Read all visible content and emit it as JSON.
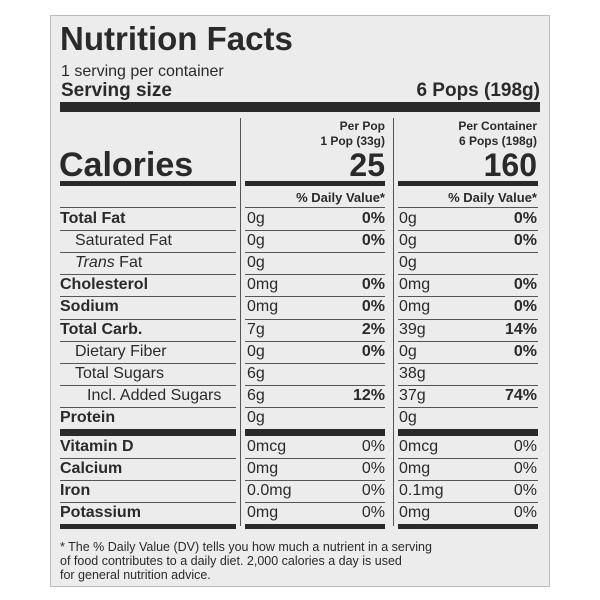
{
  "header": {
    "title": "Nutrition Facts",
    "servings": "1 serving per container",
    "serving_size_label": "Serving size",
    "serving_size_value": "6 Pops (198g)"
  },
  "calories": {
    "label": "Calories"
  },
  "columns": [
    {
      "heading": "Per Pop",
      "subheading": "1 Pop (33g)",
      "calories": "25",
      "dv_header": "% Daily Value*"
    },
    {
      "heading": "Per Container",
      "subheading": "6 Pops (198g)",
      "calories": "160",
      "dv_header": "% Daily Value*"
    }
  ],
  "nutrients": [
    {
      "name": "Total Fat",
      "per_pop": [
        "0g",
        "0%"
      ],
      "per_container": [
        "0g",
        "0%"
      ]
    },
    {
      "name": "Saturated Fat",
      "per_pop": [
        "0g",
        "0%"
      ],
      "per_container": [
        "0g",
        "0%"
      ]
    },
    {
      "name_italic": "Trans",
      "name": "Fat",
      "per_pop": [
        "0g"
      ],
      "per_container": [
        "0g"
      ]
    },
    {
      "name": "Cholesterol",
      "per_pop": [
        "0mg",
        "0%"
      ],
      "per_container": [
        "0mg",
        "0%"
      ]
    },
    {
      "name": "Sodium",
      "per_pop": [
        "0mg",
        "0%"
      ],
      "per_container": [
        "0mg",
        "0%"
      ]
    },
    {
      "name": "Total Carb.",
      "per_pop": [
        "7g",
        "2%"
      ],
      "per_container": [
        "39g",
        "14%"
      ]
    },
    {
      "name": "Dietary Fiber",
      "per_pop": [
        "0g",
        "0%"
      ],
      "per_container": [
        "0g",
        "0%"
      ]
    },
    {
      "name": "Total Sugars",
      "per_pop": [
        "6g"
      ],
      "per_container": [
        "38g"
      ]
    },
    {
      "name": "Incl. Added Sugars",
      "per_pop": [
        "6g",
        "12%"
      ],
      "per_container": [
        "37g",
        "74%"
      ]
    },
    {
      "name": "Protein",
      "per_pop": [
        "0g"
      ],
      "per_container": [
        "0g"
      ]
    }
  ],
  "vitamins": [
    {
      "name": "Vitamin D",
      "per_pop": [
        "0mcg",
        "0%"
      ],
      "per_container": [
        "0mcg",
        "0%"
      ]
    },
    {
      "name": "Calcium",
      "per_pop": [
        "0mg",
        "0%"
      ],
      "per_container": [
        "0mg",
        "0%"
      ]
    },
    {
      "name": "Iron",
      "per_pop": [
        "0.0mg",
        "0%"
      ],
      "per_container": [
        "0.1mg",
        "0%"
      ]
    },
    {
      "name": "Potassium",
      "per_pop": [
        "0mg",
        "0%"
      ],
      "per_container": [
        "0mg",
        "0%"
      ]
    }
  ],
  "footnote": [
    "* The % Daily Value (DV) tells you how much a nutrient in a serving",
    "of food contributes to a daily diet. 2,000 calories a day is used",
    "for general nutrition advice."
  ]
}
